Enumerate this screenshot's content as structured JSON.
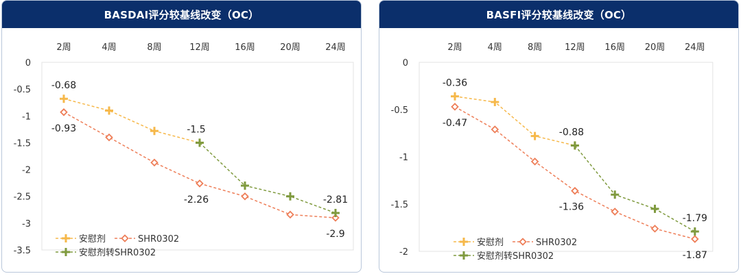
{
  "chart_data": [
    {
      "type": "line",
      "title": "BASDAI评分较基线改变（OC）",
      "categories": [
        "2周",
        "4周",
        "8周",
        "12周",
        "16周",
        "20周",
        "24周"
      ],
      "ylim": [
        -3.5,
        0
      ],
      "yticks": [
        0,
        -0.5,
        -1,
        -1.5,
        -2,
        -2.5,
        -3,
        -3.5
      ],
      "ytick_labels": [
        "0",
        "-0.5",
        "-1",
        "-1.5",
        "-2",
        "-2.5",
        "-3",
        "-3.5"
      ],
      "series": [
        {
          "name": "安慰剂",
          "color": "#f6b84a",
          "marker": "plus",
          "values": [
            -0.68,
            -0.9,
            -1.28,
            -1.5,
            null,
            null,
            null
          ]
        },
        {
          "name": "SHR0302",
          "color": "#ee7e58",
          "marker": "diamond",
          "values": [
            -0.93,
            -1.4,
            -1.87,
            -2.26,
            -2.5,
            -2.84,
            -2.9
          ]
        },
        {
          "name": "安慰剂转SHR0302",
          "color": "#7f9a3e",
          "marker": "plus",
          "values": [
            null,
            null,
            null,
            -1.5,
            -2.3,
            -2.5,
            -2.81
          ]
        }
      ],
      "data_labels": [
        {
          "text": "-0.68",
          "category": 0,
          "value": -0.68,
          "pos": "above"
        },
        {
          "text": "-0.93",
          "category": 0,
          "value": -0.93,
          "pos": "below"
        },
        {
          "text": "-1.5",
          "category": 3,
          "value": -1.5,
          "pos": "above"
        },
        {
          "text": "-2.26",
          "category": 3,
          "value": -2.26,
          "pos": "below"
        },
        {
          "text": "-2.81",
          "category": 6,
          "value": -2.81,
          "pos": "above"
        },
        {
          "text": "-2.9",
          "category": 6,
          "value": -2.9,
          "pos": "below"
        }
      ],
      "legend": [
        "安慰剂",
        "SHR0302",
        "安慰剂转SHR0302"
      ],
      "legend_position": "bottom-left"
    },
    {
      "type": "line",
      "title": "BASFI评分较基线改变（OC）",
      "categories": [
        "2周",
        "4周",
        "8周",
        "12周",
        "16周",
        "20周",
        "24周"
      ],
      "ylim": [
        -2,
        0
      ],
      "yticks": [
        0,
        -0.5,
        -1,
        -1.5,
        -2
      ],
      "ytick_labels": [
        "0",
        "-0.5",
        "-1",
        "-1.5",
        "-2"
      ],
      "series": [
        {
          "name": "安慰剂",
          "color": "#f6b84a",
          "marker": "plus",
          "values": [
            -0.36,
            -0.42,
            -0.78,
            -0.88,
            null,
            null,
            null
          ]
        },
        {
          "name": "SHR0302",
          "color": "#ee7e58",
          "marker": "diamond",
          "values": [
            -0.47,
            -0.71,
            -1.05,
            -1.36,
            -1.58,
            -1.76,
            -1.87
          ]
        },
        {
          "name": "安慰剂转SHR0302",
          "color": "#7f9a3e",
          "marker": "plus",
          "values": [
            null,
            null,
            null,
            -0.88,
            -1.4,
            -1.55,
            -1.79
          ]
        }
      ],
      "data_labels": [
        {
          "text": "-0.36",
          "category": 0,
          "value": -0.36,
          "pos": "above"
        },
        {
          "text": "-0.47",
          "category": 0,
          "value": -0.47,
          "pos": "below"
        },
        {
          "text": "-0.88",
          "category": 3,
          "value": -0.88,
          "pos": "above"
        },
        {
          "text": "-1.36",
          "category": 3,
          "value": -1.36,
          "pos": "below"
        },
        {
          "text": "-1.79",
          "category": 6,
          "value": -1.79,
          "pos": "above"
        },
        {
          "text": "-1.87",
          "category": 6,
          "value": -1.87,
          "pos": "below"
        }
      ],
      "legend": [
        "安慰剂",
        "SHR0302",
        "安慰剂转SHR0302"
      ],
      "legend_position": "bottom-left"
    }
  ]
}
